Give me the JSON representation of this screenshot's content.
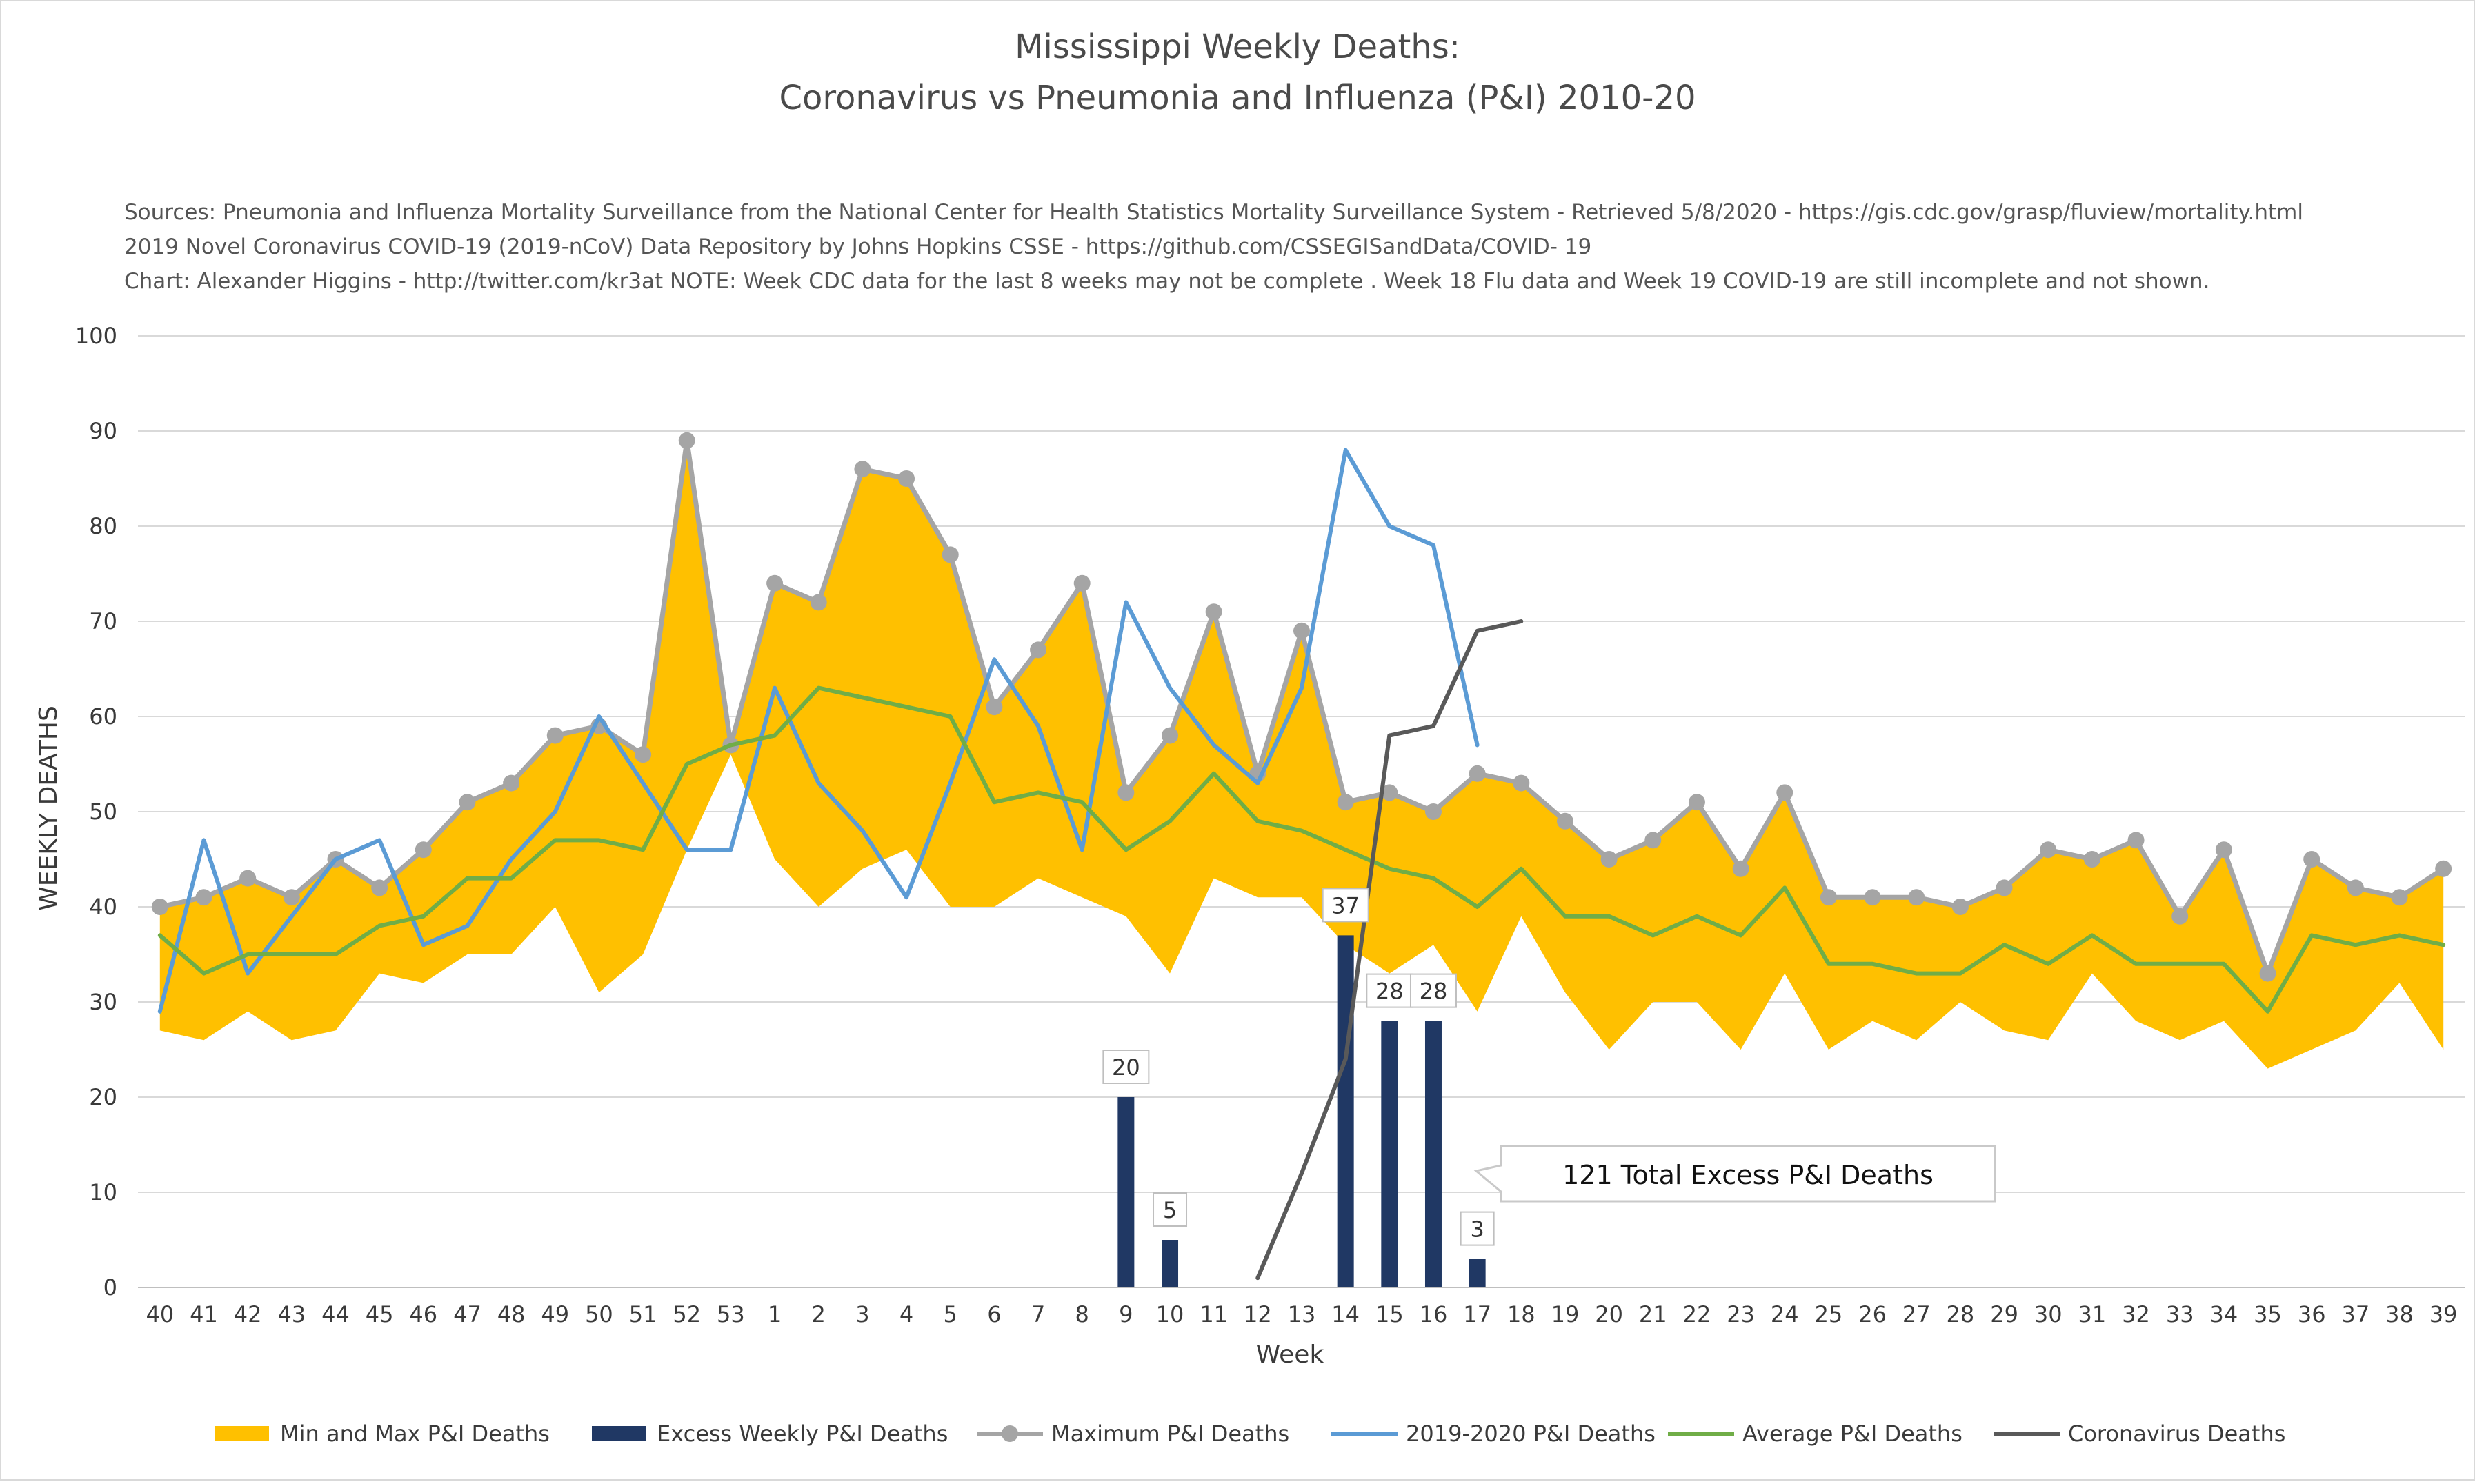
{
  "chart_data": {
    "type": "line",
    "title_lines": [
      "Mississippi Weekly Deaths:",
      "Coronavirus vs Pneumonia and Influenza (P&I) 2010-20"
    ],
    "source_lines": [
      "Sources: Pneumonia and Influenza Mortality Surveillance from the National Center for Health Statistics Mortality Surveillance System - Retrieved 5/8/2020 - https://gis.cdc.gov/grasp/fluview/mortality.html",
      "2019 Novel Coronavirus COVID-19 (2019-nCoV) Data Repository by Johns Hopkins CSSE - https://github.com/CSSEGISandData/COVID- 19",
      "Chart: Alexander Higgins - http://twitter.com/kr3at   NOTE: Week CDC data for the last 8 weeks may not be complete . Week 18 Flu data and Week 19 COVID-19 are still incomplete and not shown."
    ],
    "xlabel": "Week",
    "ylabel": "WEEKLY DEATHS",
    "ylim": [
      0,
      100
    ],
    "yticks": [
      0,
      10,
      20,
      30,
      40,
      50,
      60,
      70,
      80,
      90,
      100
    ],
    "grid": true,
    "legend_position": "bottom",
    "categories": [
      "40",
      "41",
      "42",
      "43",
      "44",
      "45",
      "46",
      "47",
      "48",
      "49",
      "50",
      "51",
      "52",
      "53",
      "1",
      "2",
      "3",
      "4",
      "5",
      "6",
      "7",
      "8",
      "9",
      "10",
      "11",
      "12",
      "13",
      "14",
      "15",
      "16",
      "17",
      "18",
      "19",
      "20",
      "21",
      "22",
      "23",
      "24",
      "25",
      "26",
      "27",
      "28",
      "29",
      "30",
      "31",
      "32",
      "33",
      "34",
      "35",
      "36",
      "37",
      "38",
      "39"
    ],
    "range_band": {
      "name": "Min and Max P&I Deaths",
      "color": "#ffc000",
      "min": [
        27,
        26,
        29,
        26,
        27,
        33,
        32,
        35,
        35,
        40,
        31,
        35,
        46,
        56,
        45,
        40,
        44,
        46,
        40,
        40,
        43,
        41,
        39,
        33,
        43,
        41,
        41,
        36,
        33,
        36,
        29,
        39,
        31,
        25,
        30,
        30,
        25,
        33,
        25,
        28,
        26,
        30,
        27,
        26,
        33,
        28,
        26,
        28,
        23,
        25,
        27,
        32,
        25
      ],
      "max": [
        40,
        41,
        43,
        41,
        45,
        42,
        46,
        51,
        53,
        58,
        59,
        56,
        89,
        57,
        74,
        72,
        86,
        85,
        77,
        61,
        67,
        74,
        52,
        58,
        71,
        54,
        69,
        51,
        52,
        50,
        54,
        53,
        49,
        45,
        47,
        51,
        44,
        52,
        41,
        41,
        41,
        40,
        42,
        46,
        45,
        47,
        39,
        46,
        33,
        45,
        42,
        41,
        44
      ]
    },
    "series": [
      {
        "name": "Excess Weekly P&I Deaths",
        "kind": "bar",
        "color": "#203864",
        "values": [
          null,
          null,
          null,
          null,
          null,
          null,
          null,
          null,
          null,
          null,
          null,
          null,
          null,
          null,
          null,
          null,
          null,
          null,
          null,
          null,
          null,
          null,
          20,
          5,
          null,
          null,
          null,
          37,
          28,
          28,
          3,
          null,
          null,
          null,
          null,
          null,
          null,
          null,
          null,
          null,
          null,
          null,
          null,
          null,
          null,
          null,
          null,
          null,
          null,
          null,
          null,
          null,
          null
        ],
        "labels": [
          "20",
          "5",
          "37",
          "28",
          "28",
          "3"
        ]
      },
      {
        "name": "Maximum P&I Deaths",
        "kind": "line-markers",
        "color": "#a5a5a5",
        "values": [
          40,
          41,
          43,
          41,
          45,
          42,
          46,
          51,
          53,
          58,
          59,
          56,
          89,
          57,
          74,
          72,
          86,
          85,
          77,
          61,
          67,
          74,
          52,
          58,
          71,
          54,
          69,
          51,
          52,
          50,
          54,
          53,
          49,
          45,
          47,
          51,
          44,
          52,
          41,
          41,
          41,
          40,
          42,
          46,
          45,
          47,
          39,
          46,
          33,
          45,
          42,
          41,
          44
        ]
      },
      {
        "name": "2019-2020 P&I Deaths",
        "kind": "line",
        "color": "#5b9bd5",
        "values": [
          29,
          47,
          33,
          39,
          45,
          47,
          36,
          38,
          45,
          50,
          60,
          53,
          46,
          46,
          63,
          53,
          48,
          41,
          53,
          66,
          59,
          46,
          72,
          63,
          57,
          53,
          63,
          88,
          80,
          78,
          57,
          null,
          null,
          null,
          null,
          null,
          null,
          null,
          null,
          null,
          null,
          null,
          null,
          null,
          null,
          null,
          null,
          null,
          null,
          null,
          null,
          null,
          null
        ]
      },
      {
        "name": "Average P&I Deaths",
        "kind": "line",
        "color": "#70ad47",
        "values": [
          37,
          33,
          35,
          35,
          35,
          38,
          39,
          43,
          43,
          47,
          47,
          46,
          55,
          57,
          58,
          63,
          62,
          61,
          60,
          51,
          52,
          51,
          46,
          49,
          54,
          49,
          48,
          46,
          44,
          43,
          40,
          44,
          39,
          39,
          37,
          39,
          37,
          42,
          34,
          34,
          33,
          33,
          36,
          34,
          37,
          34,
          34,
          34,
          29,
          37,
          36,
          37,
          36
        ]
      },
      {
        "name": "Coronavirus Deaths",
        "kind": "line",
        "color": "#595959",
        "values": [
          null,
          null,
          null,
          null,
          null,
          null,
          null,
          null,
          null,
          null,
          null,
          null,
          null,
          null,
          null,
          null,
          null,
          null,
          null,
          null,
          null,
          null,
          null,
          null,
          null,
          1,
          12,
          24,
          58,
          59,
          69,
          70,
          null,
          null,
          null,
          null,
          null,
          null,
          null,
          null,
          null,
          null,
          null,
          null,
          null,
          null,
          null,
          null,
          null,
          null,
          null,
          null,
          null
        ]
      }
    ],
    "annotation": "121 Total Excess P&I Deaths"
  }
}
